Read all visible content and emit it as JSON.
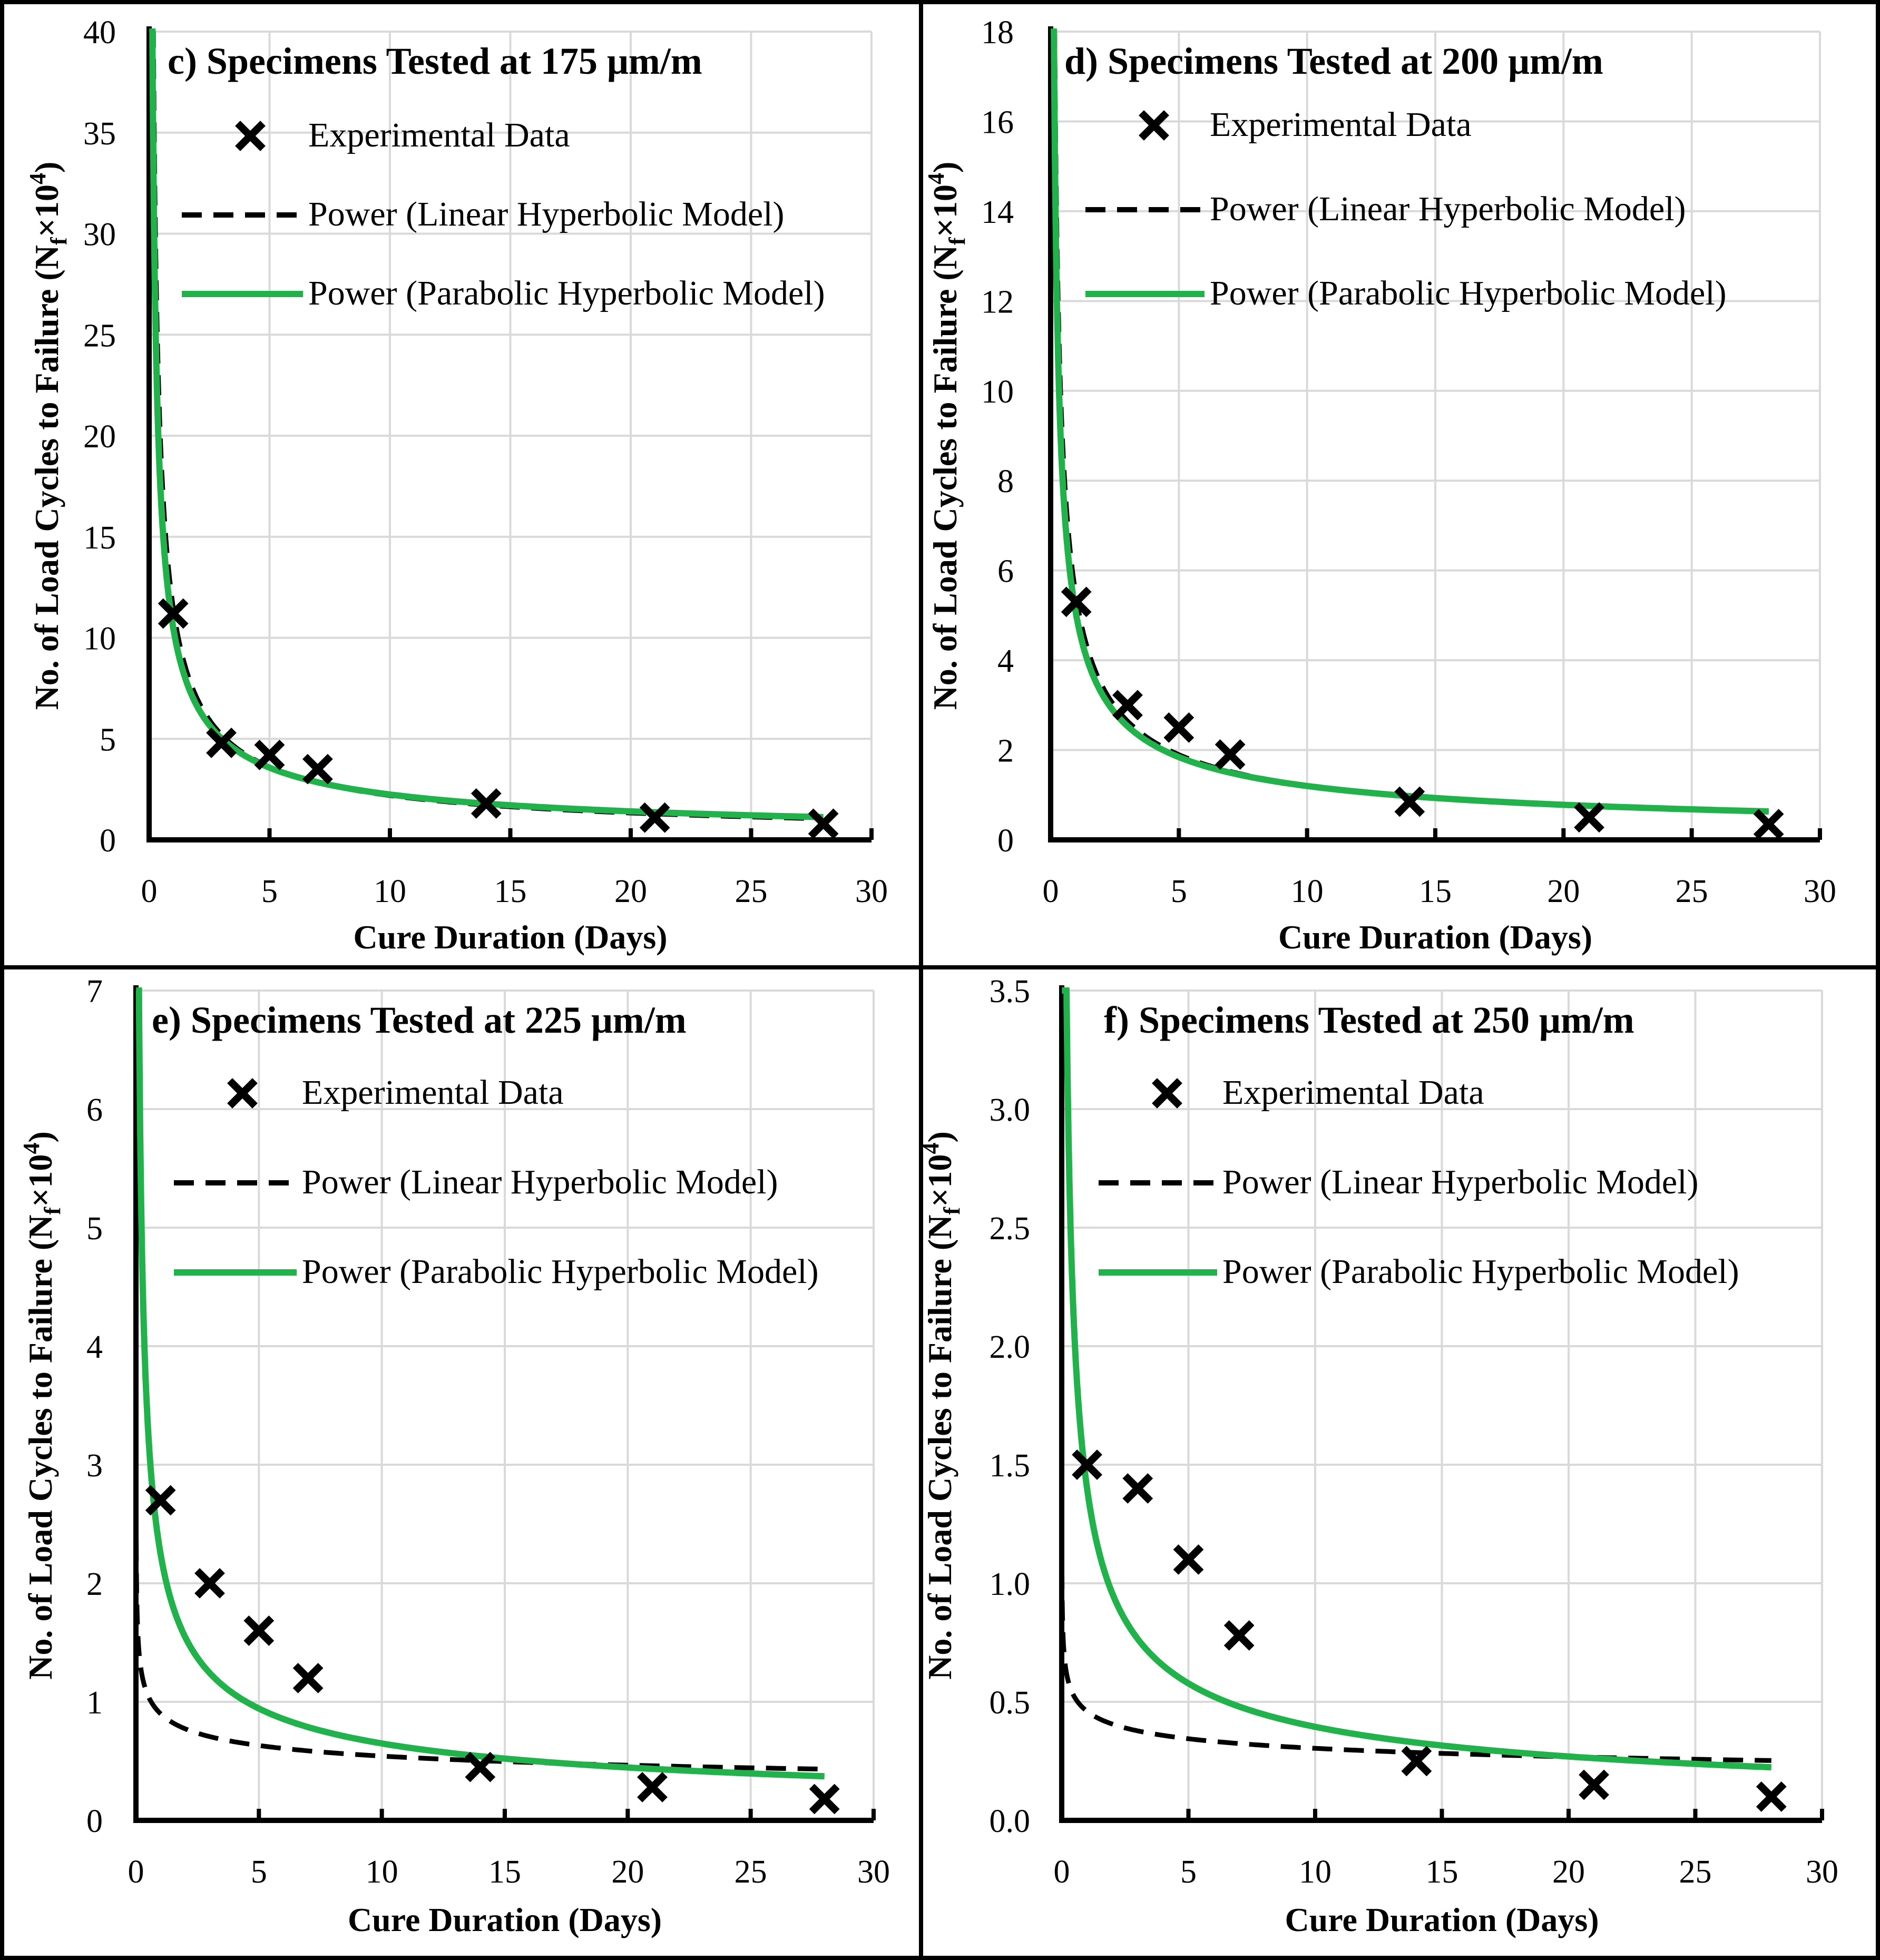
{
  "colors": {
    "experimental": "#000000",
    "linear": "#000000",
    "parabolic": "#21b24b",
    "grid": "#d9d9d9",
    "frame": "#000000"
  },
  "icons": {
    "experimental_marker": "x-marker-icon"
  },
  "chart_data": [
    {
      "type": "scatter",
      "title": "c) Specimens Tested at 175 μm/m",
      "xlabel": "Cure Duration (Days)",
      "ylabel_main": "No. of Load Cycles to Failure (N",
      "ylabel_sub": "f",
      "ylabel_tail": "×10",
      "ylabel_sup": "4",
      "ylabel_close": ")",
      "xlim": [
        0,
        30
      ],
      "ylim": [
        0,
        40
      ],
      "xticks": [
        "0",
        "5",
        "10",
        "15",
        "20",
        "25",
        "30"
      ],
      "yticks": [
        "0",
        "5",
        "10",
        "15",
        "20",
        "25",
        "30",
        "35",
        "40"
      ],
      "legend": [
        "Experimental Data",
        "Power (Linear Hyperbolic Model)",
        "Power (Parabolic Hyperbolic Model)"
      ],
      "series": [
        {
          "name": "Experimental Data",
          "x": [
            1,
            3,
            5,
            7,
            14,
            21,
            28
          ],
          "y": [
            11.2,
            4.8,
            4.2,
            3.5,
            1.8,
            1.1,
            0.8
          ]
        },
        {
          "name": "Power (Linear Hyperbolic Model)",
          "fit": {
            "a": 11.5,
            "b": 0.72
          }
        },
        {
          "name": "Power (Parabolic Hyperbolic Model)",
          "fit": {
            "a": 10.5,
            "b": 0.67
          }
        }
      ]
    },
    {
      "type": "scatter",
      "title": "d) Specimens Tested at 200 μm/m",
      "xlabel": "Cure Duration (Days)",
      "ylabel_main": "No. of Load Cycles to Failure (N",
      "ylabel_sub": "f",
      "ylabel_tail": "×10",
      "ylabel_sup": "4",
      "ylabel_close": ")",
      "xlim": [
        0,
        30
      ],
      "ylim": [
        0,
        18
      ],
      "xticks": [
        "0",
        "5",
        "10",
        "15",
        "20",
        "25",
        "30"
      ],
      "yticks": [
        "0",
        "2",
        "4",
        "6",
        "8",
        "10",
        "12",
        "14",
        "16",
        "18"
      ],
      "legend": [
        "Experimental Data",
        "Power (Linear Hyperbolic Model)",
        "Power (Parabolic Hyperbolic Model)"
      ],
      "series": [
        {
          "name": "Experimental Data",
          "x": [
            1,
            3,
            5,
            7,
            14,
            21,
            28
          ],
          "y": [
            5.3,
            3.0,
            2.5,
            1.9,
            0.85,
            0.5,
            0.35
          ]
        },
        {
          "name": "Power (Linear Hyperbolic Model)",
          "fit": {
            "a": 5.4,
            "b": 0.65
          }
        },
        {
          "name": "Power (Parabolic Hyperbolic Model)",
          "fit": {
            "a": 5.0,
            "b": 0.62
          }
        }
      ]
    },
    {
      "type": "scatter",
      "title": "e) Specimens Tested at 225 μm/m",
      "xlabel": "Cure Duration (Days)",
      "ylabel_main": "No. of Load Cycles to Failure (N",
      "ylabel_sub": "f",
      "ylabel_tail": "×10",
      "ylabel_sup": "4",
      "ylabel_close": ")",
      "xlim": [
        0,
        30
      ],
      "ylim": [
        0,
        7
      ],
      "xticks": [
        "0",
        "5",
        "10",
        "15",
        "20",
        "25",
        "30"
      ],
      "yticks": [
        "0",
        "1",
        "2",
        "3",
        "4",
        "5",
        "6",
        "7"
      ],
      "legend": [
        "Experimental Data",
        "Power (Linear Hyperbolic Model)",
        "Power (Parabolic Hyperbolic Model)"
      ],
      "series": [
        {
          "name": "Experimental Data",
          "x": [
            1,
            3,
            5,
            7,
            14,
            21,
            28
          ],
          "y": [
            2.7,
            2.0,
            1.6,
            1.2,
            0.45,
            0.28,
            0.18
          ]
        },
        {
          "name": "Power (Linear Hyperbolic Model)",
          "fit": {
            "a": 0.9,
            "b": 0.22
          }
        },
        {
          "name": "Power (Parabolic Hyperbolic Model)",
          "fit": {
            "a": 2.25,
            "b": 0.54
          }
        }
      ]
    },
    {
      "type": "scatter",
      "title": "f) Specimens Tested at 250 μm/m",
      "xlabel": "Cure Duration (Days)",
      "ylabel_main": "No. of Load Cycles to Failure (N",
      "ylabel_sub": "f",
      "ylabel_tail": "×10",
      "ylabel_sup": "4",
      "ylabel_close": ")",
      "xlim": [
        0,
        30
      ],
      "ylim": [
        0,
        3.5
      ],
      "xticks": [
        "0",
        "5",
        "10",
        "15",
        "20",
        "25",
        "30"
      ],
      "yticks": [
        "0.0",
        "0.5",
        "1.0",
        "1.5",
        "2.0",
        "2.5",
        "3.0",
        "3.5"
      ],
      "legend": [
        "Experimental Data",
        "Power (Linear Hyperbolic Model)",
        "Power (Parabolic Hyperbolic Model)"
      ],
      "series": [
        {
          "name": "Experimental Data",
          "x": [
            1,
            3,
            5,
            7,
            14,
            21,
            28
          ],
          "y": [
            1.5,
            1.4,
            1.1,
            0.78,
            0.25,
            0.15,
            0.1
          ]
        },
        {
          "name": "Power (Linear Hyperbolic Model)",
          "fit": {
            "a": 0.46,
            "b": 0.18
          }
        },
        {
          "name": "Power (Parabolic Hyperbolic Model)",
          "fit": {
            "a": 1.4,
            "b": 0.55
          }
        }
      ]
    }
  ]
}
